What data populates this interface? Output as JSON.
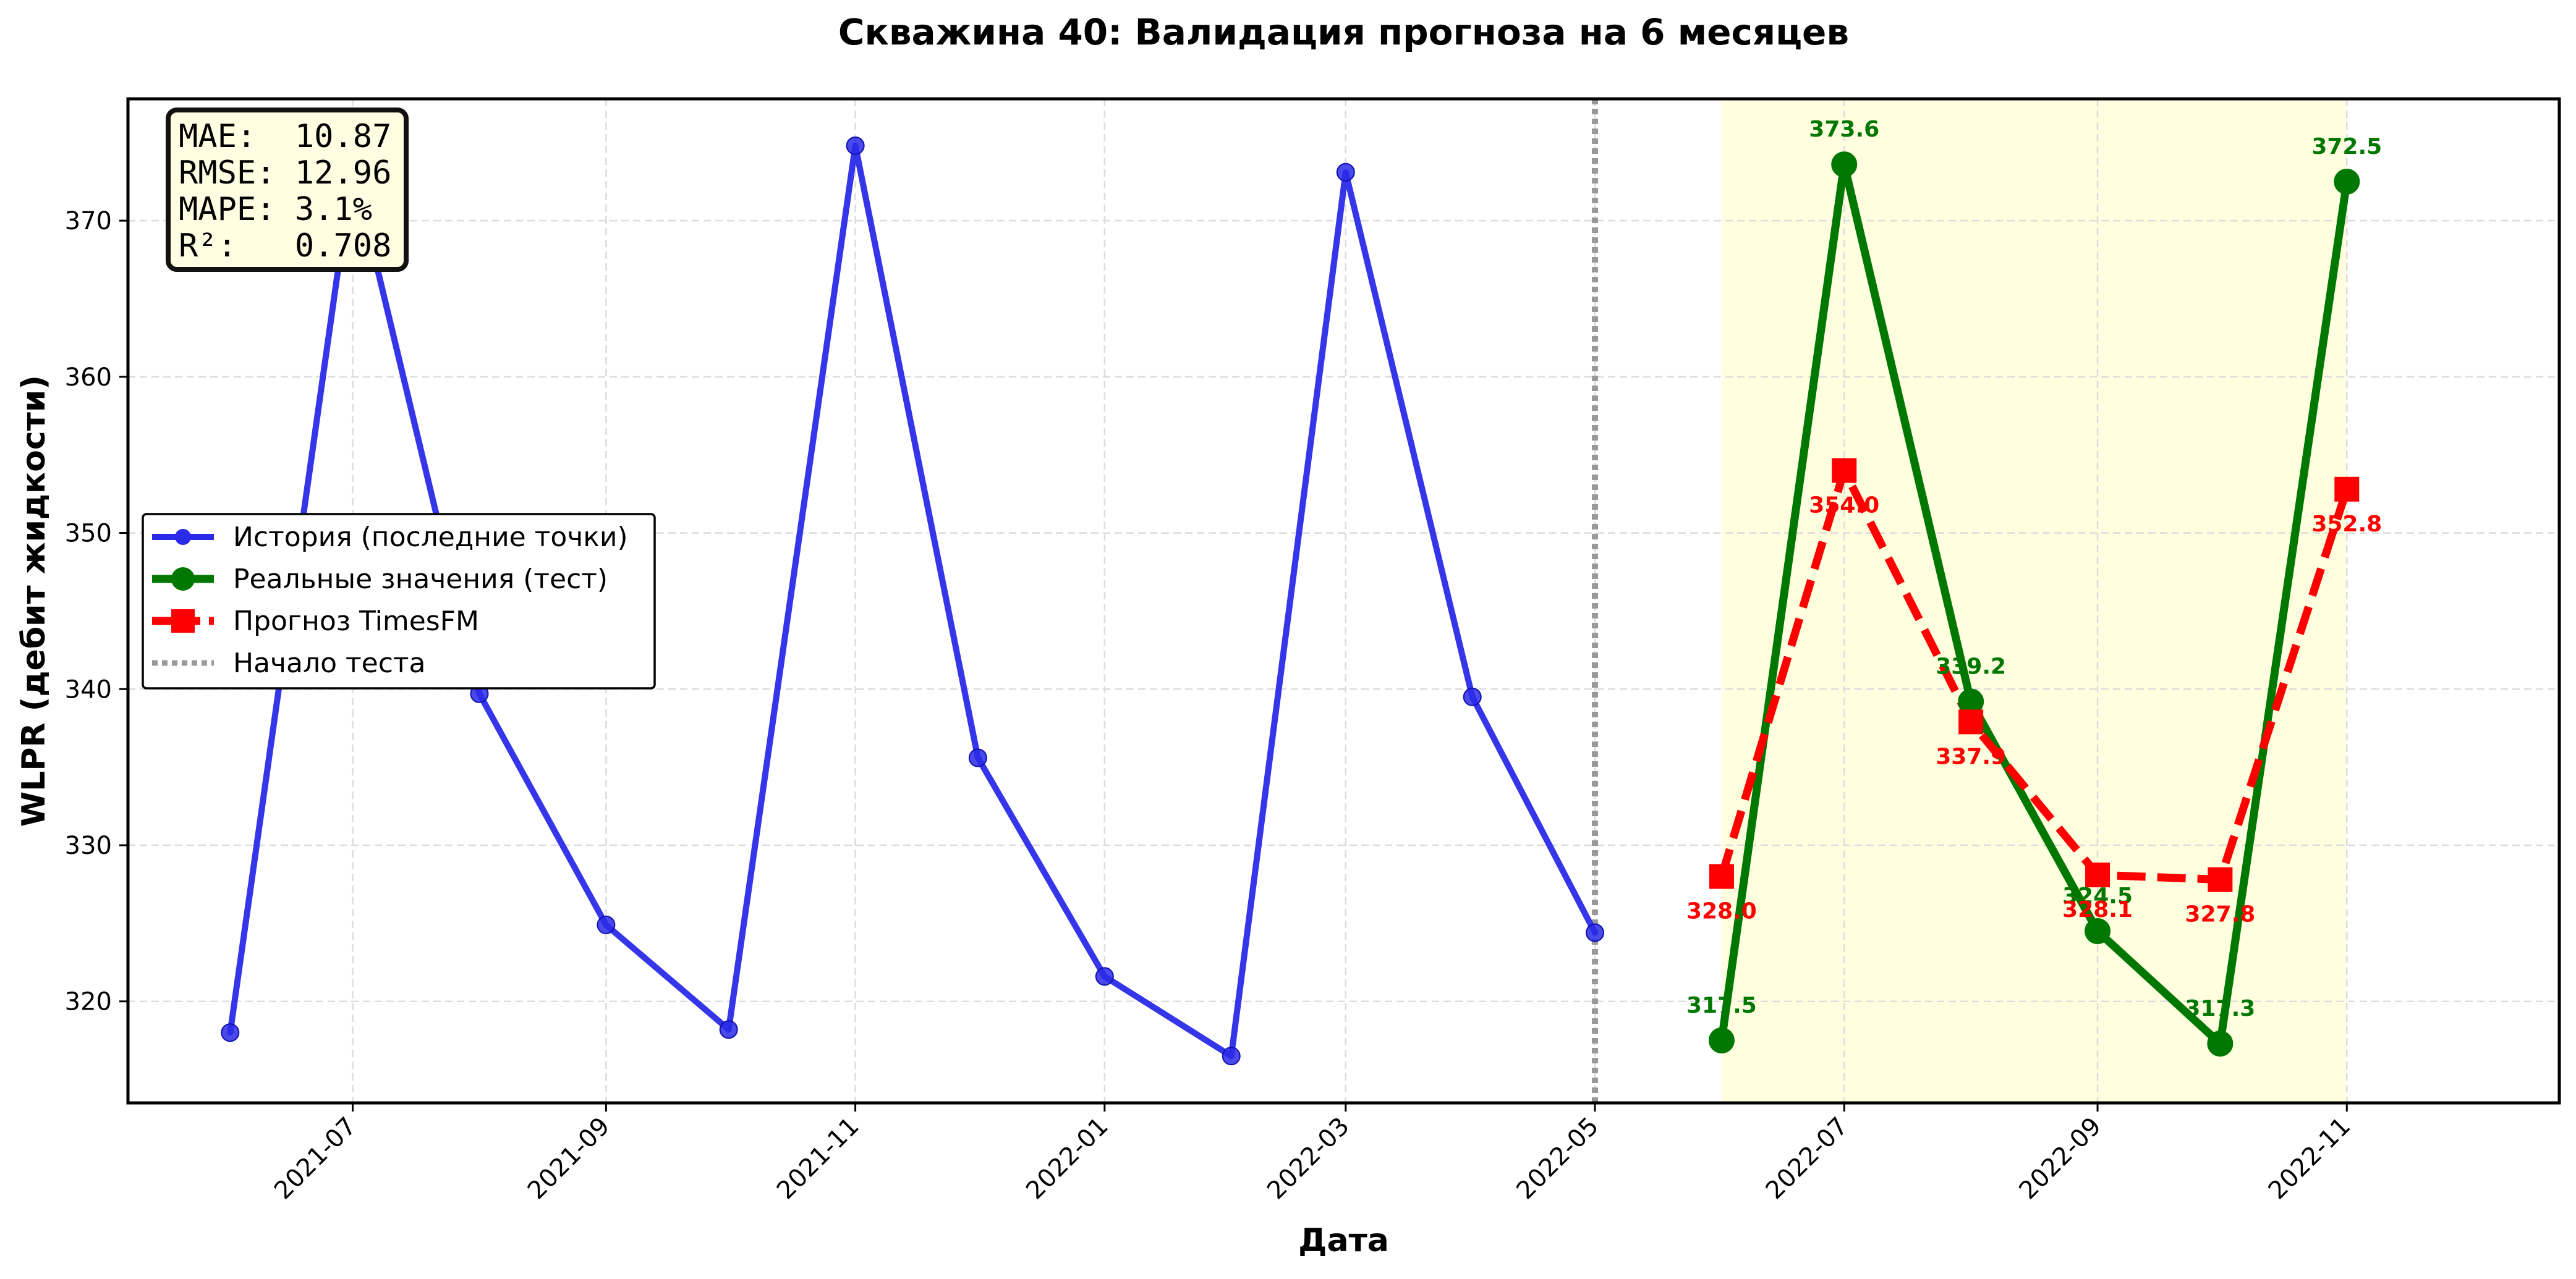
{
  "chart_data": {
    "type": "line",
    "title": "Скважина 40: Валидация прогноза на 6 месяцев",
    "xlabel": "Дата",
    "ylabel": "WLPR (дебит жидкости)",
    "x_range": [
      "2021-05-07",
      "2022-12-23"
    ],
    "ylim": [
      313.5,
      377.8
    ],
    "x_ticks": [
      "2021-07",
      "2021-09",
      "2021-11",
      "2022-01",
      "2022-03",
      "2022-05",
      "2022-07",
      "2022-09",
      "2022-11"
    ],
    "y_ticks": [
      320,
      330,
      340,
      350,
      360,
      370
    ],
    "grid": true,
    "legend_position": "center-left",
    "test_start": "2022-05",
    "test_period": [
      "2022-06",
      "2022-11"
    ],
    "series": [
      {
        "name": "История (последние точки)",
        "color": "#2a2ae8",
        "style": "solid",
        "marker": "circle",
        "x": [
          "2021-06",
          "2021-07",
          "2021-08",
          "2021-09",
          "2021-10",
          "2021-11",
          "2021-12",
          "2022-01",
          "2022-02",
          "2022-03",
          "2022-04",
          "2022-05"
        ],
        "values": [
          318.0,
          373.5,
          339.7,
          324.9,
          318.2,
          374.8,
          335.6,
          321.6,
          316.5,
          373.1,
          339.5,
          324.4
        ]
      },
      {
        "name": "Реальные значения (тест)",
        "color": "#007700",
        "style": "solid",
        "marker": "circle",
        "x": [
          "2022-06",
          "2022-07",
          "2022-08",
          "2022-09",
          "2022-10",
          "2022-11"
        ],
        "values": [
          317.5,
          373.6,
          339.2,
          324.5,
          317.3,
          372.5
        ],
        "labels": [
          "317.5",
          "373.6",
          "339.2",
          "324.5",
          "317.3",
          "372.5"
        ]
      },
      {
        "name": "Прогноз TimesFM",
        "color": "#ff0000",
        "style": "dashed",
        "marker": "square",
        "x": [
          "2022-06",
          "2022-07",
          "2022-08",
          "2022-09",
          "2022-10",
          "2022-11"
        ],
        "values": [
          328.0,
          354.0,
          337.9,
          328.1,
          327.8,
          352.8
        ],
        "labels": [
          "328.0",
          "354.0",
          "337.9",
          "328.1",
          "327.8",
          "352.8"
        ]
      }
    ],
    "legend": [
      {
        "label": "История (последние точки)",
        "color": "#2a2ae8",
        "style": "solid",
        "marker": "circle"
      },
      {
        "label": "Реальные значения (тест)",
        "color": "#007700",
        "style": "solid",
        "marker": "circle"
      },
      {
        "label": "Прогноз TimesFM",
        "color": "#ff0000",
        "style": "dashed",
        "marker": "square"
      },
      {
        "label": "Начало теста",
        "color": "#999999",
        "style": "dotted",
        "marker": "none"
      }
    ],
    "metrics": [
      "MAE:  10.87",
      "RMSE: 12.96",
      "MAPE: 3.1%",
      "R²:   0.708"
    ]
  }
}
